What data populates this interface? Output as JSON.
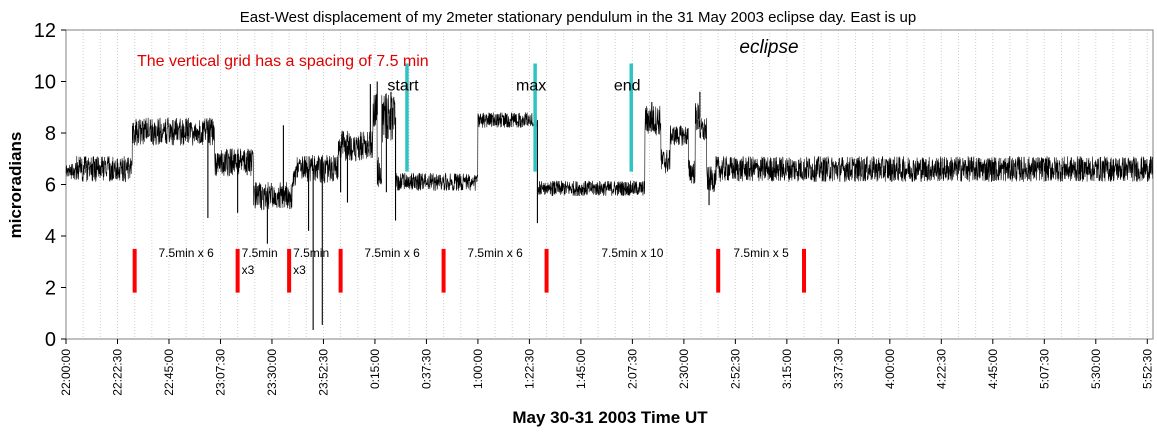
{
  "chart_data": {
    "type": "line",
    "title": "East-West displacement of my 2meter stationary pendulum in the 31 May 2003 eclipse day. East is up",
    "xlabel": "May 30-31 2003 Time UT",
    "ylabel": "microradians",
    "ylim": [
      0,
      12
    ],
    "yticks": [
      "0",
      "2",
      "4",
      "6",
      "8",
      "10",
      "12"
    ],
    "xlim_minutes": [
      1320,
      1795
    ],
    "xtick_labels": [
      "22:00:00",
      "22:22:30",
      "22:45:00",
      "23:07:30",
      "23:30:00",
      "23:52:30",
      "0:15:00",
      "0:37:30",
      "1:00:00",
      "1:22:30",
      "1:45:00",
      "2:07:30",
      "2:30:00",
      "2:52:30",
      "3:15:00",
      "3:37:30",
      "4:00:00",
      "4:22:30",
      "4:45:00",
      "5:07:30",
      "5:30:00",
      "5:52:30"
    ],
    "grid_spacing": "7.5 min",
    "note": "The vertical grid has a spacing of 7.5 min",
    "eclipse_label": "eclipse",
    "eclipse_events": [
      {
        "label": "start",
        "time_min": 1469
      },
      {
        "label": "max",
        "time_min": 1525
      },
      {
        "label": "end",
        "time_min": 1567
      }
    ],
    "series": [
      {
        "color": "#000000",
        "segments": [
          {
            "from": 1320,
            "to": 1324,
            "level": 6.5,
            "noise": 0.3
          },
          {
            "from": 1324,
            "to": 1349,
            "level": 6.6,
            "noise": 0.5
          },
          {
            "from": 1349,
            "to": 1385,
            "level": 8.05,
            "noise": 0.55
          },
          {
            "from": 1385,
            "to": 1402,
            "level": 6.85,
            "noise": 0.55
          },
          {
            "from": 1402,
            "to": 1419,
            "level": 5.55,
            "noise": 0.55
          },
          {
            "from": 1419,
            "to": 1421,
            "level": 6.3,
            "noise": 0.5
          },
          {
            "from": 1421,
            "to": 1439,
            "level": 6.6,
            "noise": 0.55
          },
          {
            "from": 1439,
            "to": 1454,
            "level": 7.5,
            "noise": 0.6
          },
          {
            "from": 1454,
            "to": 1456,
            "level": 8.7,
            "noise": 0.9
          },
          {
            "from": 1456,
            "to": 1458,
            "level": 6.5,
            "noise": 0.6
          },
          {
            "from": 1458,
            "to": 1464,
            "level": 8.6,
            "noise": 1.0
          },
          {
            "from": 1464,
            "to": 1500,
            "level": 6.1,
            "noise": 0.35
          },
          {
            "from": 1500,
            "to": 1526,
            "level": 8.5,
            "noise": 0.3
          },
          {
            "from": 1526,
            "to": 1573,
            "level": 5.85,
            "noise": 0.3
          },
          {
            "from": 1573,
            "to": 1580,
            "level": 8.5,
            "noise": 0.6
          },
          {
            "from": 1580,
            "to": 1584,
            "level": 6.9,
            "noise": 0.5
          },
          {
            "from": 1584,
            "to": 1592,
            "level": 7.9,
            "noise": 0.4
          },
          {
            "from": 1592,
            "to": 1595,
            "level": 6.5,
            "noise": 0.5
          },
          {
            "from": 1595,
            "to": 1597,
            "level": 8.6,
            "noise": 0.6
          },
          {
            "from": 1597,
            "to": 1600,
            "level": 8.1,
            "noise": 0.5
          },
          {
            "from": 1600,
            "to": 1604,
            "level": 6.2,
            "noise": 0.5
          },
          {
            "from": 1604,
            "to": 1795,
            "level": 6.6,
            "noise": 0.5
          }
        ],
        "spikes": [
          {
            "time_min": 1382,
            "value": 4.7
          },
          {
            "time_min": 1395,
            "value": 4.9
          },
          {
            "time_min": 1408,
            "value": 3.7
          },
          {
            "time_min": 1415,
            "value": 8.3
          },
          {
            "time_min": 1426,
            "value": 4.2
          },
          {
            "time_min": 1428,
            "value": 0.35
          },
          {
            "time_min": 1432,
            "value": 0.55
          },
          {
            "time_min": 1440,
            "value": 5.7
          },
          {
            "time_min": 1443,
            "value": 5.3
          },
          {
            "time_min": 1453,
            "value": 9.9
          },
          {
            "time_min": 1456,
            "value": 10.0
          },
          {
            "time_min": 1460,
            "value": 5.7
          },
          {
            "time_min": 1462,
            "value": 9.6
          },
          {
            "time_min": 1464,
            "value": 4.6
          },
          {
            "time_min": 1526,
            "value": 4.5
          },
          {
            "time_min": 1576,
            "value": 9.2
          },
          {
            "time_min": 1597,
            "value": 9.6
          },
          {
            "time_min": 1601,
            "value": 5.2
          }
        ]
      }
    ],
    "intervals": [
      {
        "label": "7.5min x 6",
        "from_min": 1350,
        "to_min": 1395
      },
      {
        "label": "7.5min x3",
        "from_min": 1395,
        "to_min": 1417.5
      },
      {
        "label": "7.5min x3",
        "from_min": 1417.5,
        "to_min": 1440
      },
      {
        "label": "7.5min  x  6",
        "from_min": 1440,
        "to_min": 1485
      },
      {
        "label": "7.5min x 6",
        "from_min": 1485,
        "to_min": 1530
      },
      {
        "label": "7.5min x 10",
        "from_min": 1530,
        "to_min": 1605
      },
      {
        "label": "7.5min x 5",
        "from_min": 1605,
        "to_min": 1642.5
      }
    ],
    "interval_marker_range": [
      1.8,
      3.5
    ],
    "colors": {
      "trace": "#000000",
      "interval": "#ff0000",
      "eclipse": "#2ec4c4",
      "grid": "#d0d0d0",
      "note": "#e00000"
    }
  }
}
